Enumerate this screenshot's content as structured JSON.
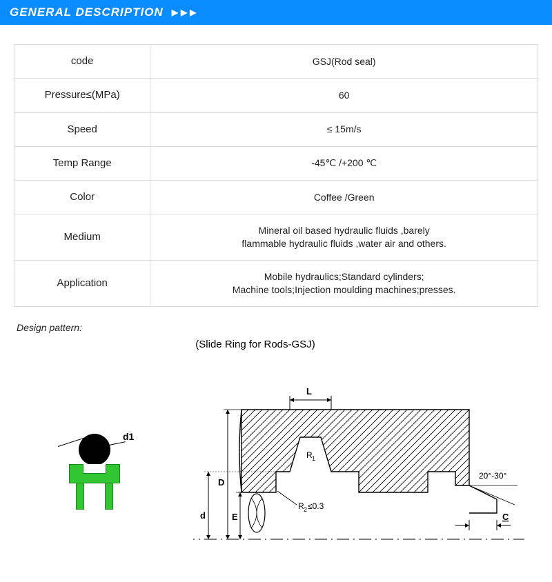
{
  "header": {
    "title": "GENERAL DESCRIPTION",
    "arrows": "▶▶▶",
    "bg_color": "#0a8cff",
    "text_color": "#ffffff"
  },
  "spec_table": {
    "rows": [
      {
        "label": "code",
        "value": "GSJ(Rod seal)"
      },
      {
        "label": "Pressure≤(MPa)",
        "value": "60"
      },
      {
        "label": "Speed",
        "value": "≤ 15m/s"
      },
      {
        "label": "Temp Range",
        "value": "-45℃ /+200 ℃"
      },
      {
        "label": "Color",
        "value": "Coffee /Green"
      },
      {
        "label": "Medium",
        "value": "Mineral oil based hydraulic fluids ,barely\nflammable hydraulic fluids ,water air and others."
      },
      {
        "label": "Application",
        "value": "Mobile hydraulics;Standard cylinders;\nMachine tools;Injection moulding machines;presses."
      }
    ],
    "border_color": "#dcdcdc",
    "label_fontsize": 15,
    "value_fontsize": 14
  },
  "design": {
    "label": "Design pattern:",
    "diagram_title": "(Slide Ring for Rods-GSJ)",
    "colors": {
      "oring": "#000000",
      "seal_fill": "#33c633",
      "seal_border": "#1a8a1a",
      "hatch": "#000000",
      "line": "#000000"
    },
    "labels": {
      "d1": "d1",
      "L": "L",
      "R1": "R1",
      "R2": "R2≤0.3",
      "D": "D",
      "E": "E",
      "d": "d",
      "angle": "20°-30°",
      "C": "C"
    }
  }
}
